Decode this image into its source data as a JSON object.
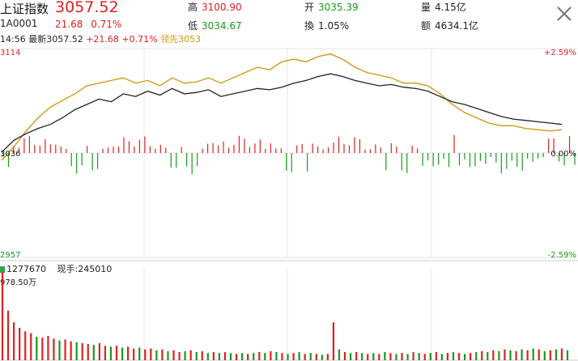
{
  "header": {
    "name": "上证指数",
    "price": "3057.52",
    "code": "1A0001",
    "change": "21.68",
    "change_pct": "0.71%",
    "high_label": "高",
    "high_value": "3100.90",
    "low_label": "低",
    "low_value": "3034.67",
    "open_label": "开",
    "open_value": "3035.39",
    "turnover_label": "換",
    "turnover_value": "1.05%",
    "volume_label": "量",
    "volume_value": "4.15亿",
    "amount_label": "额",
    "amount_value": "4634.1亿"
  },
  "info_line": {
    "time": "14:56",
    "latest_label": "最新",
    "latest_value": "3057.52",
    "change": "+21.68",
    "change_pct": "+0.71%",
    "lead_label": "领先",
    "lead_value": "3053"
  },
  "volume_panel": {
    "bar_value": "1277670",
    "hand_label": "现手:",
    "hand_value": "245010",
    "max_label": "978.50万"
  },
  "colors": {
    "up": "#e02020",
    "down": "#1a9a1a",
    "price_line": "#222222",
    "lead_line": "#d4940a",
    "grid": "#e6e6e6"
  },
  "icons": {
    "close": "close-icon"
  },
  "chart_data": {
    "type": "line",
    "title": "",
    "y_left_ticks": [
      "3114",
      "3036",
      "2957"
    ],
    "y_right_ticks": [
      "+2.59%",
      "0.00%",
      "-2.59%"
    ],
    "ylim": [
      2957,
      3114
    ],
    "prev_close": 3036,
    "series": [
      {
        "name": "最新",
        "color": "#222222",
        "values": [
          3036,
          3045,
          3050,
          3054,
          3057,
          3062,
          3068,
          3072,
          3076,
          3074,
          3080,
          3078,
          3082,
          3079,
          3084,
          3080,
          3081,
          3083,
          3078,
          3080,
          3082,
          3084,
          3083,
          3085,
          3088,
          3090,
          3093,
          3095,
          3093,
          3090,
          3088,
          3086,
          3087,
          3085,
          3084,
          3082,
          3078,
          3074,
          3072,
          3069,
          3066,
          3063,
          3061,
          3060,
          3059,
          3058,
          3057
        ]
      },
      {
        "name": "领先",
        "color": "#d4940a",
        "values": [
          3030,
          3040,
          3052,
          3062,
          3070,
          3075,
          3080,
          3086,
          3088,
          3090,
          3092,
          3088,
          3090,
          3086,
          3092,
          3088,
          3089,
          3092,
          3088,
          3092,
          3096,
          3100,
          3098,
          3104,
          3106,
          3104,
          3108,
          3110,
          3106,
          3100,
          3096,
          3094,
          3092,
          3088,
          3088,
          3086,
          3080,
          3072,
          3066,
          3062,
          3058,
          3056,
          3056,
          3054,
          3053,
          3052,
          3053
        ]
      }
    ],
    "volume_bars": [
      {
        "v": 9.8,
        "up": true
      },
      {
        "v": 5.5,
        "up": true
      },
      {
        "v": 4.2,
        "up": true
      },
      {
        "v": 3.6,
        "up": true
      },
      {
        "v": 3.2,
        "up": true
      },
      {
        "v": 3.0,
        "up": true
      },
      {
        "v": 2.6,
        "up": false
      },
      {
        "v": 2.5,
        "up": true
      },
      {
        "v": 2.7,
        "up": true
      },
      {
        "v": 2.4,
        "up": true
      },
      {
        "v": 2.2,
        "up": false
      },
      {
        "v": 2.3,
        "up": true
      },
      {
        "v": 2.1,
        "up": true
      },
      {
        "v": 2.0,
        "up": false
      },
      {
        "v": 1.9,
        "up": true
      },
      {
        "v": 1.8,
        "up": true
      },
      {
        "v": 1.7,
        "up": false
      },
      {
        "v": 1.9,
        "up": true
      },
      {
        "v": 1.6,
        "up": true
      },
      {
        "v": 1.5,
        "up": false
      },
      {
        "v": 1.6,
        "up": true
      },
      {
        "v": 1.4,
        "up": false
      },
      {
        "v": 1.5,
        "up": true
      },
      {
        "v": 1.3,
        "up": true
      },
      {
        "v": 1.4,
        "up": false
      },
      {
        "v": 1.2,
        "up": true
      },
      {
        "v": 1.3,
        "up": true
      },
      {
        "v": 1.1,
        "up": false
      },
      {
        "v": 1.2,
        "up": true
      },
      {
        "v": 1.0,
        "up": false
      },
      {
        "v": 1.1,
        "up": true
      },
      {
        "v": 0.9,
        "up": true
      },
      {
        "v": 1.0,
        "up": false
      },
      {
        "v": 1.1,
        "up": true
      },
      {
        "v": 0.9,
        "up": false
      },
      {
        "v": 1.0,
        "up": true
      },
      {
        "v": 0.8,
        "up": false
      },
      {
        "v": 0.9,
        "up": true
      },
      {
        "v": 0.8,
        "up": false
      },
      {
        "v": 0.9,
        "up": true
      },
      {
        "v": 0.8,
        "up": false
      },
      {
        "v": 0.7,
        "up": true
      },
      {
        "v": 0.8,
        "up": false
      },
      {
        "v": 0.7,
        "up": true
      },
      {
        "v": 0.8,
        "up": false
      },
      {
        "v": 0.9,
        "up": true
      },
      {
        "v": 0.8,
        "up": false
      },
      {
        "v": 1.0,
        "up": true
      },
      {
        "v": 0.9,
        "up": false
      },
      {
        "v": 0.8,
        "up": true
      },
      {
        "v": 0.7,
        "up": false
      },
      {
        "v": 0.8,
        "up": true
      },
      {
        "v": 0.9,
        "up": false
      },
      {
        "v": 0.7,
        "up": true
      },
      {
        "v": 0.8,
        "up": false
      },
      {
        "v": 0.7,
        "up": true
      },
      {
        "v": 0.6,
        "up": false
      },
      {
        "v": 0.7,
        "up": true
      },
      {
        "v": 4.2,
        "up": true
      },
      {
        "v": 1.2,
        "up": false
      },
      {
        "v": 0.9,
        "up": true
      },
      {
        "v": 0.8,
        "up": false
      },
      {
        "v": 0.9,
        "up": true
      },
      {
        "v": 0.8,
        "up": false
      },
      {
        "v": 0.7,
        "up": true
      },
      {
        "v": 0.8,
        "up": false
      },
      {
        "v": 0.7,
        "up": true
      },
      {
        "v": 0.9,
        "up": false
      },
      {
        "v": 0.8,
        "up": true
      },
      {
        "v": 0.7,
        "up": false
      },
      {
        "v": 0.8,
        "up": true
      },
      {
        "v": 0.7,
        "up": false
      },
      {
        "v": 0.9,
        "up": true
      },
      {
        "v": 0.8,
        "up": false
      },
      {
        "v": 0.7,
        "up": true
      },
      {
        "v": 0.8,
        "up": false
      },
      {
        "v": 0.9,
        "up": true
      },
      {
        "v": 0.7,
        "up": false
      },
      {
        "v": 0.8,
        "up": true
      },
      {
        "v": 0.9,
        "up": false
      },
      {
        "v": 0.8,
        "up": true
      },
      {
        "v": 0.7,
        "up": false
      },
      {
        "v": 0.8,
        "up": true
      },
      {
        "v": 0.9,
        "up": false
      },
      {
        "v": 1.0,
        "up": true
      },
      {
        "v": 0.9,
        "up": false
      },
      {
        "v": 1.1,
        "up": true
      },
      {
        "v": 1.0,
        "up": false
      },
      {
        "v": 1.2,
        "up": true
      },
      {
        "v": 1.1,
        "up": false
      },
      {
        "v": 1.0,
        "up": true
      },
      {
        "v": 1.2,
        "up": false
      },
      {
        "v": 1.1,
        "up": true
      },
      {
        "v": 1.3,
        "up": false
      },
      {
        "v": 1.2,
        "up": true
      },
      {
        "v": 1.0,
        "up": false
      },
      {
        "v": 1.1,
        "up": true
      },
      {
        "v": 1.2,
        "up": false
      },
      {
        "v": 1.3,
        "up": true
      },
      {
        "v": 1.1,
        "up": false
      }
    ]
  }
}
